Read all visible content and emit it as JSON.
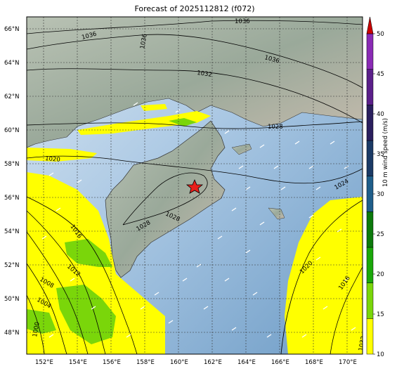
{
  "title": "Forecast of 2025112812 (f072)",
  "lat_ticks": [
    "66°N",
    "64°N",
    "62°N",
    "60°N",
    "58°N",
    "56°N",
    "54°N",
    "52°N",
    "50°N",
    "48°N"
  ],
  "lon_ticks": [
    "152°E",
    "154°E",
    "156°E",
    "158°E",
    "160°E",
    "162°E",
    "164°E",
    "166°E",
    "168°E",
    "170°E"
  ],
  "isobar_labels": [
    "1036",
    "1036",
    "1036",
    "1036",
    "1032",
    "1028",
    "1020",
    "1024",
    "1016",
    "1012",
    "1008",
    "1004",
    "1000",
    "1028",
    "1028",
    "1020",
    "1016",
    "1032"
  ],
  "colorbar": {
    "title": "10 m wind speed (m/s)",
    "ticks": [
      "50",
      "45",
      "40",
      "35",
      "30",
      "25",
      "20",
      "15",
      "10"
    ],
    "colors": [
      "#ffff00",
      "#7ad60a",
      "#1aa80a",
      "#0c7a0c",
      "#1f5e8a",
      "#1b3a66",
      "#2a1f5e",
      "#5b1f8a",
      "#8a2ab5",
      "#cc0000"
    ]
  },
  "marker": {
    "type": "star",
    "color": "#e8201a"
  }
}
